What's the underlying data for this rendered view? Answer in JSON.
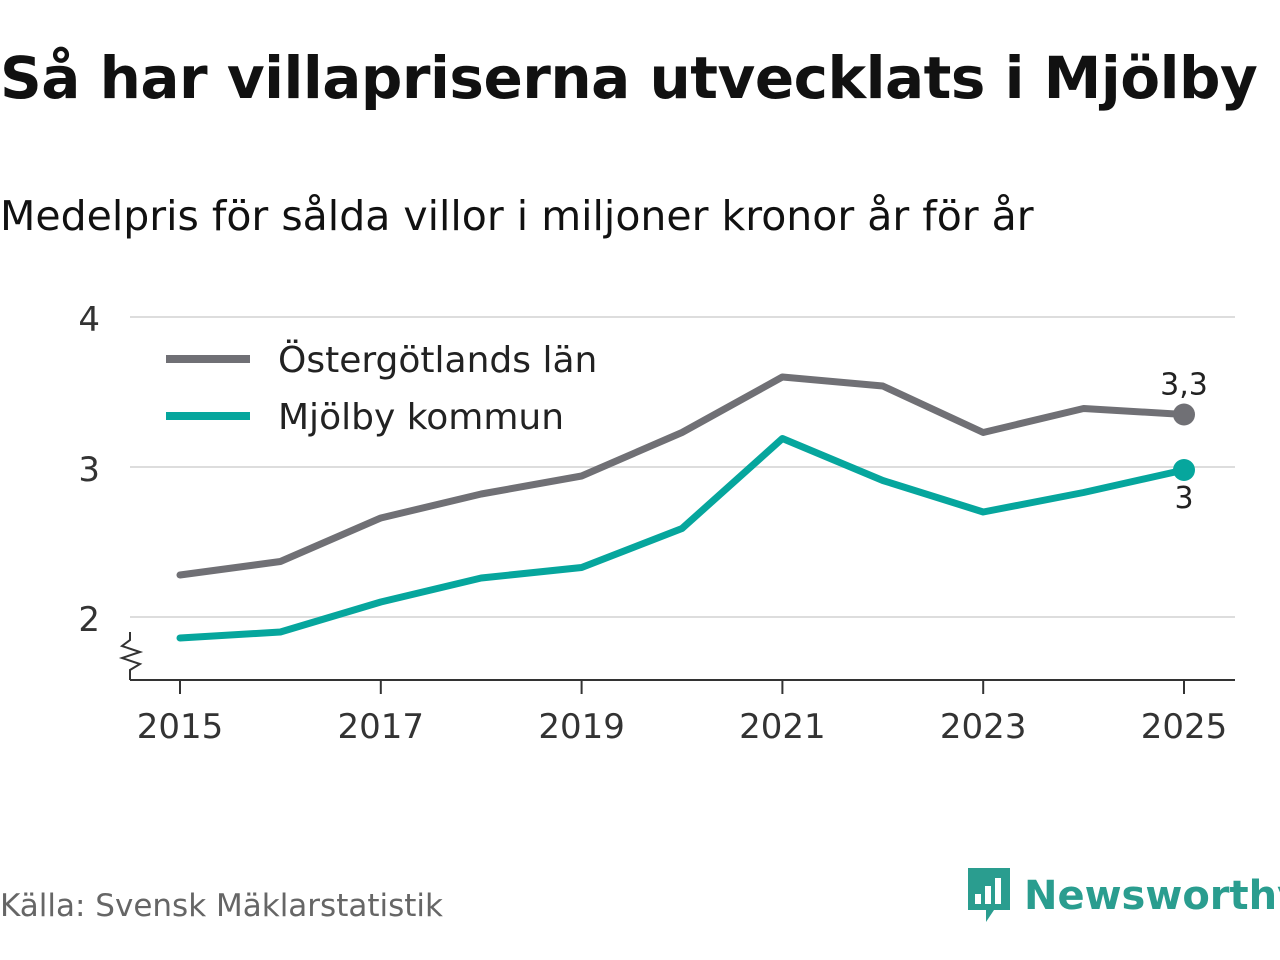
{
  "title": "Så har villapriserna utvecklats i Mjölby",
  "subtitle": "Medelpris för sålda villor i miljoner kronor år för år",
  "source": "Källa: Svensk Mäklarstatistik",
  "brand": "Newsworthy",
  "colors": {
    "grey": "#707075",
    "teal": "#06a69d",
    "brand": "#2a9d8f"
  },
  "chart_data": {
    "type": "line",
    "x": [
      2015,
      2016,
      2017,
      2018,
      2019,
      2020,
      2021,
      2022,
      2023,
      2024,
      2025
    ],
    "x_tick_labels": [
      "2015",
      "2017",
      "2019",
      "2021",
      "2023",
      "2025"
    ],
    "y_tick_labels": [
      "2",
      "3",
      "4"
    ],
    "ylim": [
      1.6,
      4
    ],
    "yticks": [
      2,
      3,
      4
    ],
    "axis_break": true,
    "legend_position": "top-left",
    "series": [
      {
        "name": "Östergötlands län",
        "color": "#707075",
        "values": [
          2.28,
          2.37,
          2.66,
          2.82,
          2.94,
          3.23,
          3.6,
          3.54,
          3.23,
          3.39,
          3.35
        ],
        "end_label": "3,3"
      },
      {
        "name": "Mjölby kommun",
        "color": "#06a69d",
        "values": [
          1.86,
          1.9,
          2.1,
          2.26,
          2.33,
          2.59,
          3.19,
          2.91,
          2.7,
          2.83,
          2.98
        ],
        "end_label": "3"
      }
    ]
  }
}
